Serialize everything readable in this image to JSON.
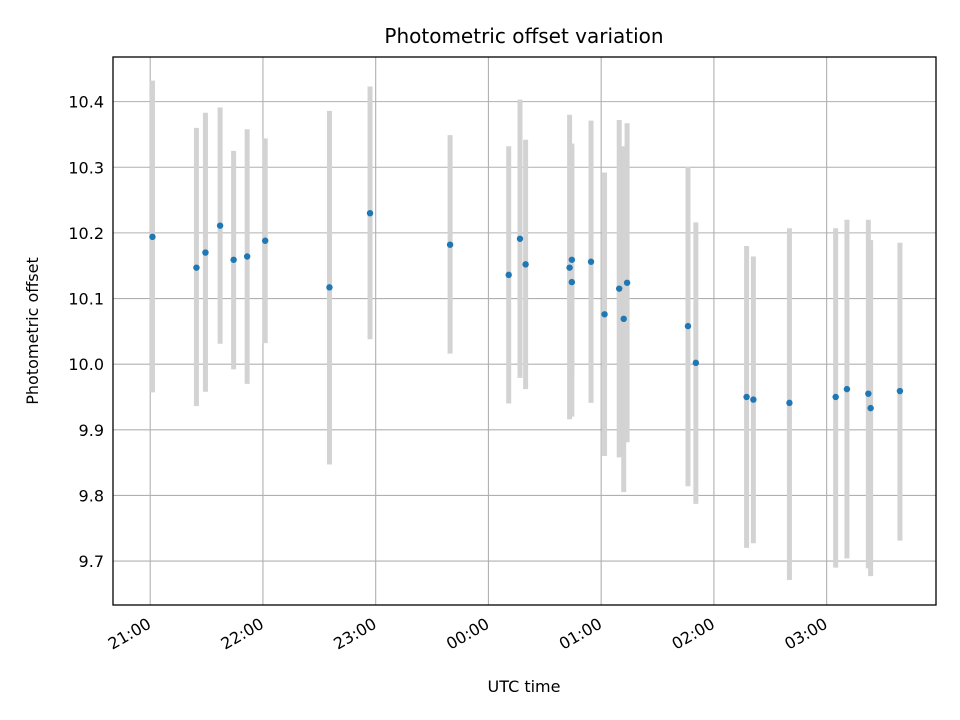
{
  "chart_data": {
    "type": "scatter",
    "title": "Photometric offset variation",
    "xlabel": "UTC time",
    "ylabel": "Photometric offset",
    "xaxis": {
      "unit": "hours",
      "range": [
        -0.33,
        6.97
      ],
      "ticks": [
        {
          "value": 0,
          "label": "21:00"
        },
        {
          "value": 1,
          "label": "22:00"
        },
        {
          "value": 2,
          "label": "23:00"
        },
        {
          "value": 3,
          "label": "00:00"
        },
        {
          "value": 4,
          "label": "01:00"
        },
        {
          "value": 5,
          "label": "02:00"
        },
        {
          "value": 6,
          "label": "03:00"
        }
      ]
    },
    "yaxis": {
      "range": [
        9.633,
        10.468
      ],
      "ticks": [
        "9.7",
        "9.8",
        "9.9",
        "10.0",
        "10.1",
        "10.2",
        "10.3",
        "10.4"
      ]
    },
    "grid": true,
    "points": [
      {
        "x": 0.02,
        "y": 10.194,
        "ylo": 9.957,
        "yhi": 10.432
      },
      {
        "x": 0.41,
        "y": 10.147,
        "ylo": 9.936,
        "yhi": 10.36
      },
      {
        "x": 0.49,
        "y": 10.17,
        "ylo": 9.958,
        "yhi": 10.383
      },
      {
        "x": 0.62,
        "y": 10.211,
        "ylo": 10.031,
        "yhi": 10.391
      },
      {
        "x": 0.74,
        "y": 10.159,
        "ylo": 9.992,
        "yhi": 10.325
      },
      {
        "x": 0.86,
        "y": 10.164,
        "ylo": 9.97,
        "yhi": 10.358
      },
      {
        "x": 1.02,
        "y": 10.188,
        "ylo": 10.032,
        "yhi": 10.344
      },
      {
        "x": 1.59,
        "y": 10.117,
        "ylo": 9.847,
        "yhi": 10.386
      },
      {
        "x": 1.95,
        "y": 10.23,
        "ylo": 10.038,
        "yhi": 10.423
      },
      {
        "x": 2.66,
        "y": 10.182,
        "ylo": 10.016,
        "yhi": 10.349
      },
      {
        "x": 3.18,
        "y": 10.136,
        "ylo": 9.94,
        "yhi": 10.332
      },
      {
        "x": 3.28,
        "y": 10.191,
        "ylo": 9.979,
        "yhi": 10.403
      },
      {
        "x": 3.33,
        "y": 10.152,
        "ylo": 9.962,
        "yhi": 10.342
      },
      {
        "x": 3.72,
        "y": 10.147,
        "ylo": 9.916,
        "yhi": 10.38
      },
      {
        "x": 3.74,
        "y": 10.159,
        "ylo": 9.983,
        "yhi": 10.336
      },
      {
        "x": 3.74,
        "y": 10.125,
        "ylo": 9.92,
        "yhi": 10.33
      },
      {
        "x": 3.91,
        "y": 10.156,
        "ylo": 9.941,
        "yhi": 10.371
      },
      {
        "x": 4.03,
        "y": 10.076,
        "ylo": 9.86,
        "yhi": 10.292
      },
      {
        "x": 4.16,
        "y": 10.115,
        "ylo": 9.858,
        "yhi": 10.372
      },
      {
        "x": 4.2,
        "y": 10.069,
        "ylo": 9.805,
        "yhi": 10.332
      },
      {
        "x": 4.23,
        "y": 10.124,
        "ylo": 9.881,
        "yhi": 10.367
      },
      {
        "x": 4.77,
        "y": 10.058,
        "ylo": 9.814,
        "yhi": 10.301
      },
      {
        "x": 4.84,
        "y": 10.002,
        "ylo": 9.787,
        "yhi": 10.216
      },
      {
        "x": 5.29,
        "y": 9.95,
        "ylo": 9.72,
        "yhi": 10.18
      },
      {
        "x": 5.35,
        "y": 9.946,
        "ylo": 9.727,
        "yhi": 10.164
      },
      {
        "x": 5.67,
        "y": 9.941,
        "ylo": 9.671,
        "yhi": 10.207
      },
      {
        "x": 6.08,
        "y": 9.95,
        "ylo": 9.69,
        "yhi": 10.207
      },
      {
        "x": 6.18,
        "y": 9.962,
        "ylo": 9.704,
        "yhi": 10.22
      },
      {
        "x": 6.37,
        "y": 9.955,
        "ylo": 9.689,
        "yhi": 10.22
      },
      {
        "x": 6.39,
        "y": 9.933,
        "ylo": 9.677,
        "yhi": 10.189
      },
      {
        "x": 6.65,
        "y": 9.959,
        "ylo": 9.731,
        "yhi": 10.185
      }
    ],
    "colors": {
      "marker": "#1f77b4",
      "errorbar": "#d3d3d3",
      "grid": "#b0b0b0"
    }
  }
}
